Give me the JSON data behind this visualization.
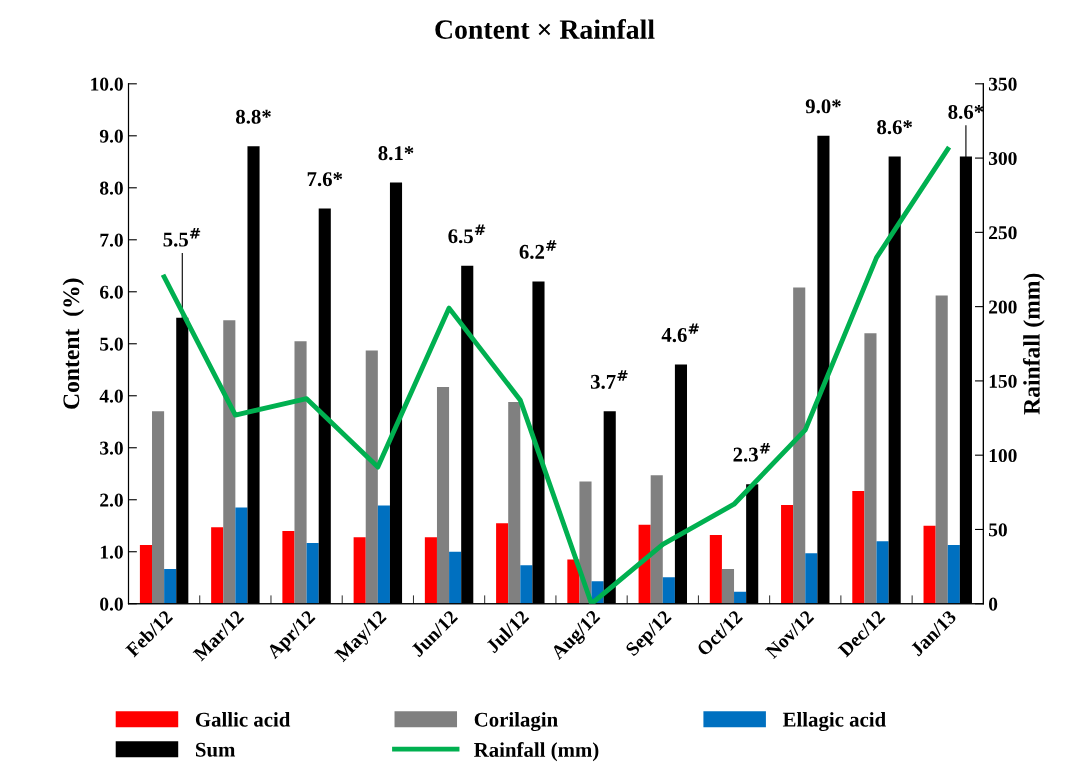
{
  "chart_data": {
    "type": "bar",
    "title": "Content × Rainfall",
    "ylabel": "Content  (%)",
    "y2label": "Rainfall (mm)",
    "categories": [
      "Feb/12",
      "Mar/12",
      "Apr/12",
      "May/12",
      "Jun/12",
      "Jul/12",
      "Aug/12",
      "Sep/12",
      "Oct/12",
      "Nov/12",
      "Dec/12",
      "Jan/13"
    ],
    "series": [
      {
        "name": "Gallic acid",
        "color": "#ff0000",
        "values": [
          1.13,
          1.47,
          1.4,
          1.28,
          1.28,
          1.55,
          0.85,
          1.52,
          1.32,
          1.9,
          2.17,
          1.5
        ]
      },
      {
        "name": "Corilagin",
        "color": "#808080",
        "values": [
          3.7,
          5.45,
          5.05,
          4.87,
          4.17,
          3.88,
          2.35,
          2.47,
          0.67,
          6.08,
          5.2,
          5.93
        ]
      },
      {
        "name": "Ellagic acid",
        "color": "#0070c0",
        "values": [
          0.67,
          1.85,
          1.17,
          1.89,
          1.0,
          0.74,
          0.43,
          0.51,
          0.23,
          0.97,
          1.2,
          1.13
        ]
      },
      {
        "name": "Sum",
        "color": "#000000",
        "values": [
          5.5,
          8.8,
          7.6,
          8.1,
          6.5,
          6.2,
          3.7,
          4.6,
          2.3,
          9.0,
          8.6,
          8.6
        ],
        "value_labels": [
          "5.5$^{#}$",
          "8.8*",
          "7.6*",
          "8.1*",
          "6.5$^{#}$",
          "6.2$^{#}$",
          "3.7$^{#}$",
          "4.6$^{#}$",
          "2.3$^{#}$",
          "9.0*",
          "8.6*",
          "8.6*"
        ]
      },
      {
        "name": "Rainfall (mm)",
        "type": "line",
        "axis": "y2",
        "color": "#00b050",
        "values": [
          220,
          127,
          138,
          92,
          199,
          137,
          0,
          40,
          67,
          117,
          233,
          306
        ]
      }
    ],
    "ylim": [
      0,
      10
    ],
    "yticks": [
      {
        "value": 0,
        "label": "0.0"
      },
      {
        "value": 1,
        "label": "1.0"
      },
      {
        "value": 2,
        "label": "2.0"
      },
      {
        "value": 3,
        "label": "3.0"
      },
      {
        "value": 4,
        "label": "4.0"
      },
      {
        "value": 5,
        "label": "5.0"
      },
      {
        "value": 6,
        "label": "6.0"
      },
      {
        "value": 7,
        "label": "7.0"
      },
      {
        "value": 8,
        "label": "8.0"
      },
      {
        "value": 9,
        "label": "9.0"
      },
      {
        "value": 10,
        "label": "10.0"
      }
    ],
    "y2lim": [
      0,
      350
    ],
    "y2ticks": [
      0,
      50,
      100,
      150,
      200,
      250,
      300,
      350
    ],
    "grid": false,
    "legend": "bottom",
    "marker": "none",
    "line_style": "solid"
  }
}
